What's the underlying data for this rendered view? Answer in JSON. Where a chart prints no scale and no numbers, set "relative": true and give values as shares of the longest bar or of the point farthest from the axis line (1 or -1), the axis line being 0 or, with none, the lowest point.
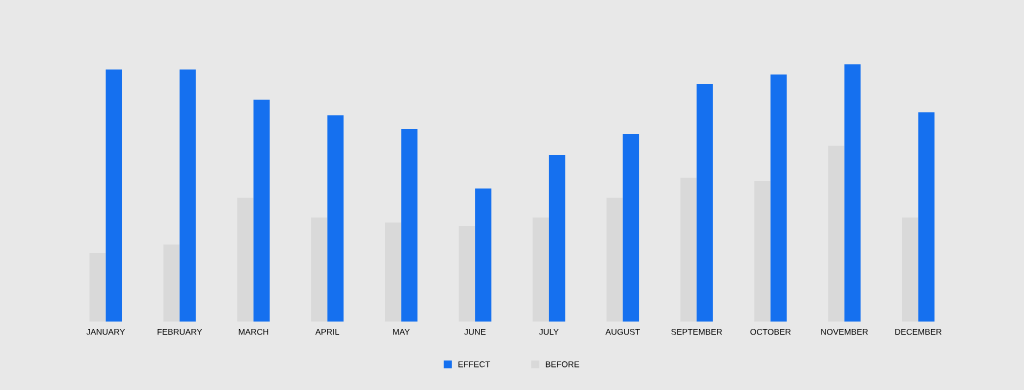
{
  "chart_data": {
    "type": "bar",
    "relative": true,
    "categories": [
      "JANUARY",
      "FEBRUARY",
      "MARCH",
      "APRIL",
      "MAY",
      "JUNE",
      "JULY",
      "AUGUST",
      "SEPTEMBER",
      "OCTOBER",
      "NOVEMBER",
      "DECEMBER"
    ],
    "series": [
      {
        "name": "BEFORE",
        "color": "#d9d9d9",
        "values": [
          0.267,
          0.3,
          0.482,
          0.405,
          0.385,
          0.372,
          0.405,
          0.482,
          0.559,
          0.547,
          0.684,
          0.405
        ]
      },
      {
        "name": "EFFECT",
        "color": "#1570ef",
        "values": [
          0.98,
          0.98,
          0.862,
          0.802,
          0.749,
          0.518,
          0.648,
          0.729,
          0.923,
          0.96,
          1,
          0.814
        ]
      }
    ],
    "legend": "bottom",
    "grid": false
  }
}
